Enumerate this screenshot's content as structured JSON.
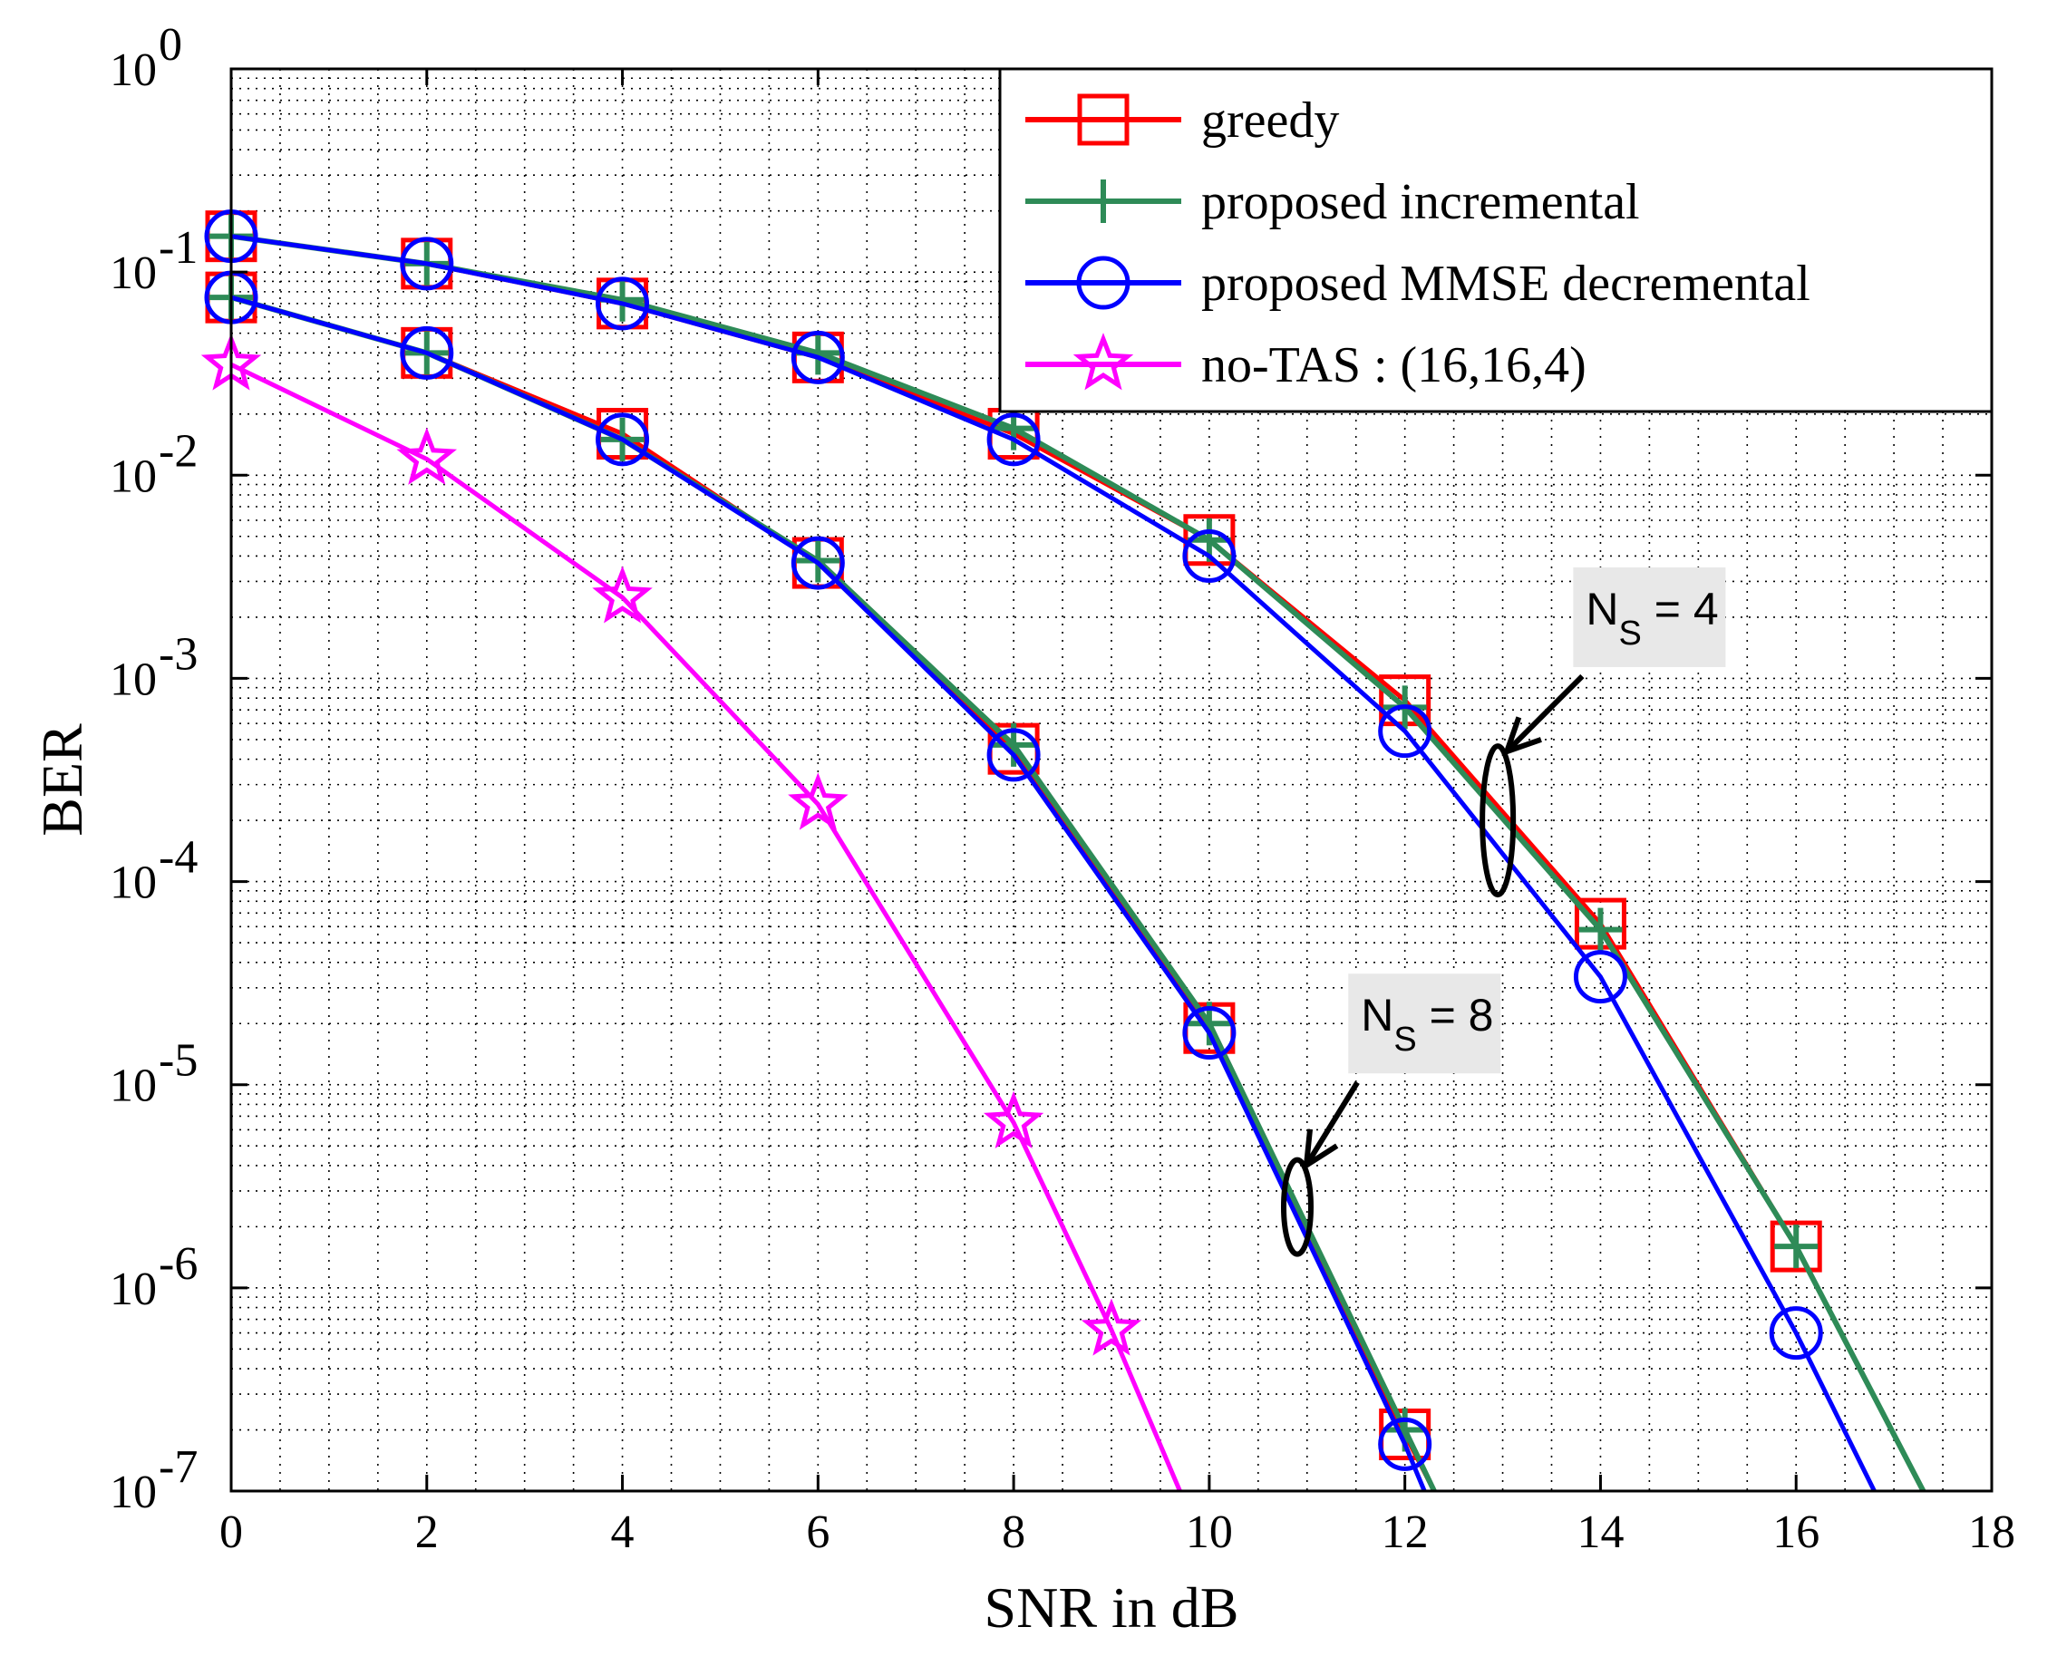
{
  "chart_data": {
    "type": "line",
    "title": "",
    "xlabel": "SNR in dB",
    "ylabel": "BER",
    "xlim": [
      0,
      18
    ],
    "ylim": [
      1e-07,
      1
    ],
    "yscale": "log",
    "grid": true,
    "legend_position": "top-right",
    "x_ticks": [
      0,
      2,
      4,
      6,
      8,
      10,
      12,
      14,
      16,
      18
    ],
    "y_ticks": [
      {
        "base": "10",
        "exp": "0",
        "value": 1
      },
      {
        "base": "10",
        "exp": "-1",
        "value": 0.1
      },
      {
        "base": "10",
        "exp": "-2",
        "value": 0.01
      },
      {
        "base": "10",
        "exp": "-3",
        "value": 0.001
      },
      {
        "base": "10",
        "exp": "-4",
        "value": 0.0001
      },
      {
        "base": "10",
        "exp": "-5",
        "value": 1e-05
      },
      {
        "base": "10",
        "exp": "-6",
        "value": 1e-06
      },
      {
        "base": "10",
        "exp": "-7",
        "value": 1e-07
      }
    ],
    "series": [
      {
        "name": "greedy",
        "color": "#ff0000",
        "marker": "square",
        "group": "Ns=4",
        "x": [
          0,
          2,
          4,
          6,
          8,
          10,
          12,
          14,
          16,
          17.3
        ],
        "y": [
          0.15,
          0.11,
          0.07,
          0.038,
          0.016,
          0.0048,
          0.00078,
          6.2e-05,
          1.6e-06,
          8e-08
        ]
      },
      {
        "name": "proposed incremental",
        "color": "#2e8b57",
        "marker": "plus",
        "group": "Ns=4",
        "x": [
          0,
          2,
          4,
          6,
          8,
          10,
          12,
          14,
          16,
          17.3
        ],
        "y": [
          0.15,
          0.11,
          0.073,
          0.04,
          0.017,
          0.0048,
          0.00072,
          5.8e-05,
          1.6e-06,
          8e-08
        ]
      },
      {
        "name": "proposed MMSE decremental",
        "color": "#0000ff",
        "marker": "circle",
        "group": "Ns=4",
        "x": [
          0,
          2,
          4,
          6,
          8,
          10,
          12,
          14,
          16,
          16.8
        ],
        "y": [
          0.15,
          0.11,
          0.07,
          0.038,
          0.015,
          0.004,
          0.00055,
          3.4e-05,
          6e-07,
          8e-08
        ]
      },
      {
        "name": "greedy",
        "color": "#ff0000",
        "marker": "square",
        "group": "Ns=8",
        "x": [
          0,
          2,
          4,
          6,
          8,
          10,
          12,
          12.3
        ],
        "y": [
          0.075,
          0.04,
          0.016,
          0.0037,
          0.00045,
          1.9e-05,
          1.9e-07,
          8e-08
        ]
      },
      {
        "name": "proposed incremental",
        "color": "#2e8b57",
        "marker": "plus",
        "group": "Ns=8",
        "x": [
          0,
          2,
          4,
          6,
          8,
          10,
          12,
          12.3
        ],
        "y": [
          0.075,
          0.04,
          0.015,
          0.0038,
          0.00047,
          2e-05,
          2e-07,
          8e-08
        ]
      },
      {
        "name": "proposed MMSE decremental",
        "color": "#0000ff",
        "marker": "circle",
        "group": "Ns=8",
        "x": [
          0,
          2,
          4,
          6,
          8,
          10,
          12,
          12.2
        ],
        "y": [
          0.075,
          0.04,
          0.015,
          0.0037,
          0.00042,
          1.8e-05,
          1.7e-07,
          8e-08
        ]
      },
      {
        "name": "no-TAS : (16,16,4)",
        "color": "#ff00ff",
        "marker": "star",
        "group": "noTAS",
        "x": [
          0,
          2,
          4,
          6,
          8,
          9,
          9.7
        ],
        "y": [
          0.035,
          0.012,
          0.0025,
          0.00024,
          6.5e-06,
          6.2e-07,
          8e-08
        ]
      }
    ],
    "legend": [
      {
        "label": "greedy",
        "color": "#ff0000",
        "marker": "square"
      },
      {
        "label": "proposed incremental",
        "color": "#2e8b57",
        "marker": "plus"
      },
      {
        "label": "proposed MMSE decremental",
        "color": "#0000ff",
        "marker": "circle"
      },
      {
        "label": "no-TAS : (16,16,4)",
        "color": "#ff00ff",
        "marker": "star"
      }
    ],
    "annotations": [
      {
        "prefix": "N",
        "sub": "S",
        "suffix": " = 4",
        "ellipse_at": {
          "x": 12.95,
          "y": 0.0002
        },
        "label_at": {
          "x": 14.5,
          "y": 0.002
        }
      },
      {
        "prefix": "N",
        "sub": "S",
        "suffix": " = 8",
        "ellipse_at": {
          "x": 10.9,
          "y": 2.5e-06
        },
        "label_at": {
          "x": 12.2,
          "y": 2e-05
        }
      }
    ]
  }
}
